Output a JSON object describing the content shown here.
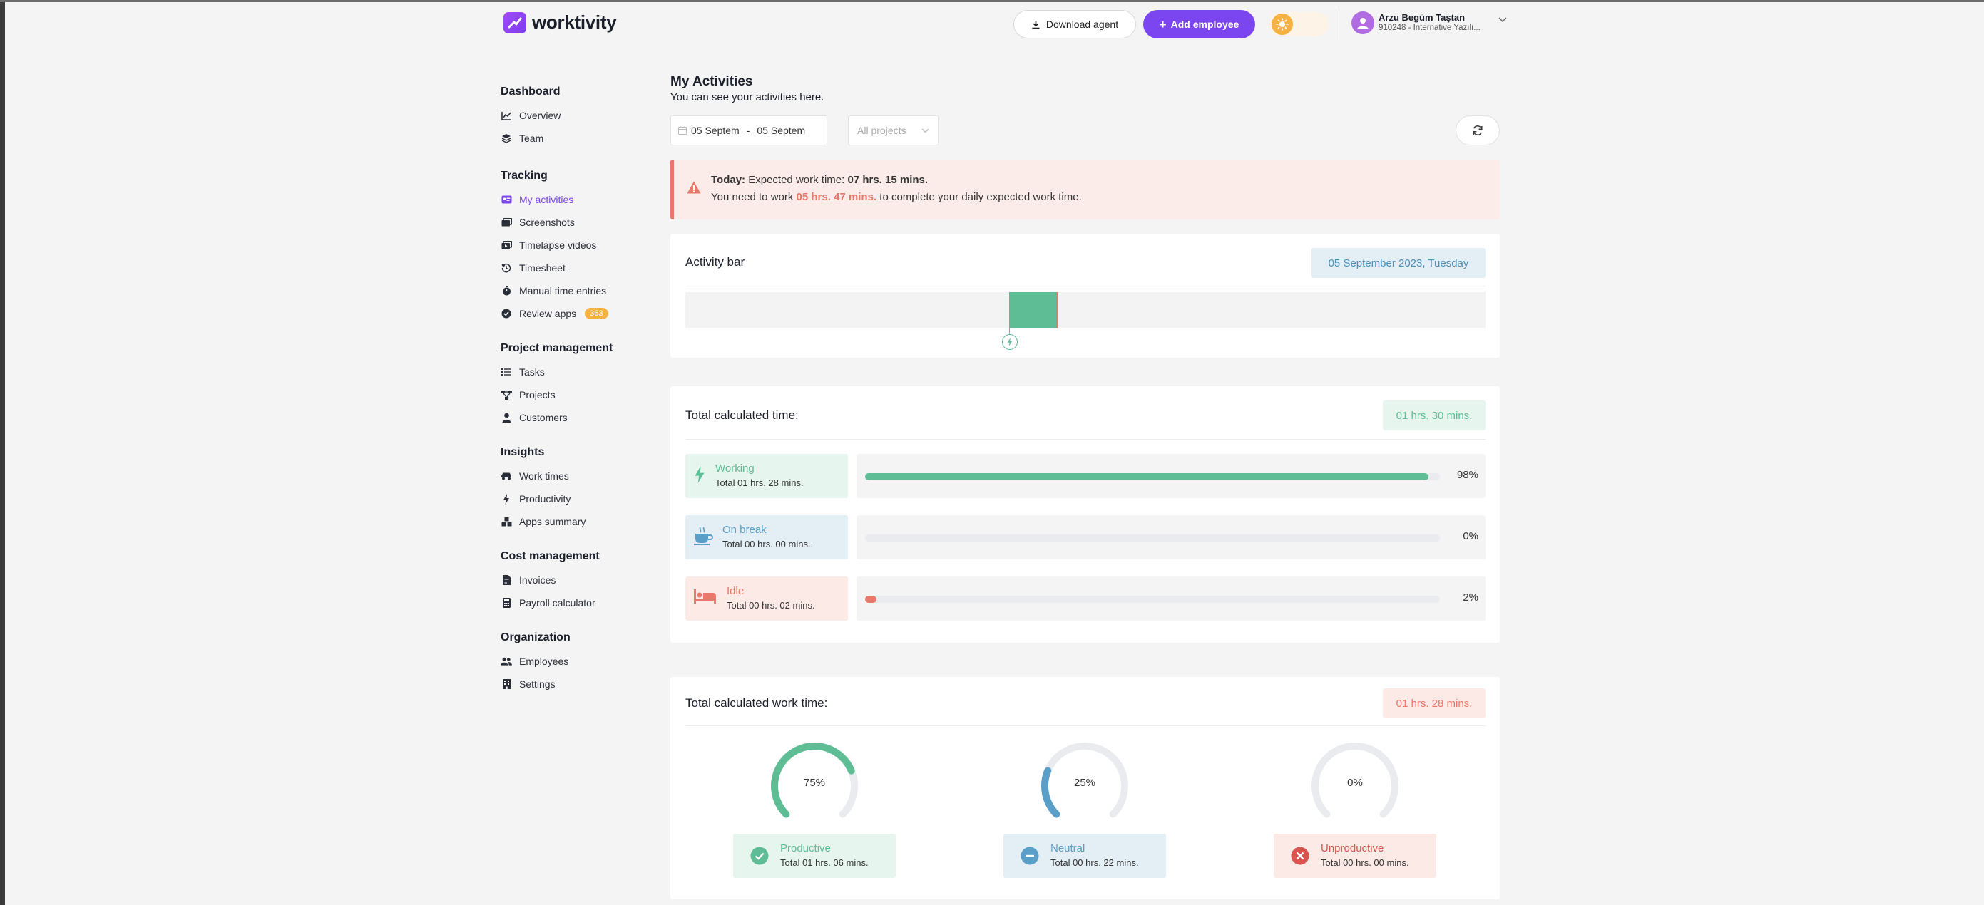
{
  "header": {
    "logo_text": "worktivity",
    "download_label": "Download agent",
    "add_employee_label": "Add employee",
    "user_name": "Arzu Begüm Taştan",
    "user_subtitle": "910248 - Internative Yazılı..."
  },
  "sidebar": {
    "sections": [
      {
        "title": "Dashboard",
        "items": [
          {
            "label": "Overview",
            "icon": "chart-line-icon"
          },
          {
            "label": "Team",
            "icon": "layers-icon"
          }
        ]
      },
      {
        "title": "Tracking",
        "items": [
          {
            "label": "My activities",
            "icon": "id-card-icon",
            "active": true
          },
          {
            "label": "Screenshots",
            "icon": "images-icon"
          },
          {
            "label": "Timelapse videos",
            "icon": "video-icon"
          },
          {
            "label": "Timesheet",
            "icon": "history-icon"
          },
          {
            "label": "Manual time entries",
            "icon": "stopwatch-icon"
          },
          {
            "label": "Review apps",
            "icon": "check-circle-icon",
            "badge": "363"
          }
        ]
      },
      {
        "title": "Project management",
        "items": [
          {
            "label": "Tasks",
            "icon": "list-icon"
          },
          {
            "label": "Projects",
            "icon": "sitemap-icon"
          },
          {
            "label": "Customers",
            "icon": "user-tie-icon"
          }
        ]
      },
      {
        "title": "Insights",
        "items": [
          {
            "label": "Work times",
            "icon": "car-icon"
          },
          {
            "label": "Productivity",
            "icon": "bolt-icon"
          },
          {
            "label": "Apps summary",
            "icon": "cubes-icon"
          }
        ]
      },
      {
        "title": "Cost management",
        "items": [
          {
            "label": "Invoices",
            "icon": "file-invoice-icon"
          },
          {
            "label": "Payroll calculator",
            "icon": "calculator-icon"
          }
        ]
      },
      {
        "title": "Organization",
        "items": [
          {
            "label": "Employees",
            "icon": "users-icon"
          },
          {
            "label": "Settings",
            "icon": "building-icon"
          }
        ]
      }
    ]
  },
  "main": {
    "title": "My Activities",
    "subtitle": "You can see your activities here.",
    "date_from": "05 Septem",
    "date_sep": "-",
    "date_to": "05 Septem",
    "project_placeholder": "All projects"
  },
  "alert": {
    "today_label": "Today:",
    "expected_text": "Expected work time:",
    "expected_value": "07 hrs. 15 mins.",
    "line2_prefix": "You need to work",
    "line2_value": "05 hrs. 47 mins.",
    "line2_suffix": "to complete your daily expected work time."
  },
  "activity_bar": {
    "title": "Activity bar",
    "date": "05 September 2023, Tuesday"
  },
  "total_time": {
    "title": "Total calculated time:",
    "value": "01 hrs. 30 mins.",
    "rows": [
      {
        "label": "Working",
        "sub": "Total 01 hrs. 28 mins.",
        "percent": 98,
        "percent_label": "98%",
        "color": "#5ebd95",
        "bg": "#e6f6ef"
      },
      {
        "label": "On break",
        "sub": "Total 00 hrs. 00 mins..",
        "percent": 0,
        "percent_label": "0%",
        "color": "#5a9fc8",
        "bg": "#e4eff5"
      },
      {
        "label": "Idle",
        "sub": "Total 00 hrs. 02 mins.",
        "percent": 2,
        "percent_label": "2%",
        "color": "#e8786a",
        "bg": "#fbeae6"
      }
    ]
  },
  "work_time": {
    "title": "Total calculated work time:",
    "value": "01 hrs. 28 mins.",
    "gauges": [
      {
        "percent": 75,
        "percent_label": "75%",
        "label": "Productive",
        "sub": "Total 01 hrs. 06 mins.",
        "color": "#5ebd95",
        "bg": "#e6f6ef"
      },
      {
        "percent": 25,
        "percent_label": "25%",
        "label": "Neutral",
        "sub": "Total 00 hrs. 22 mins.",
        "color": "#5a9fc8",
        "bg": "#e4eff5"
      },
      {
        "percent": 0,
        "percent_label": "0%",
        "label": "Unproductive",
        "sub": "Total 00 hrs. 00 mins.",
        "color": "#d9534f",
        "bg": "#fbeae6"
      }
    ]
  }
}
